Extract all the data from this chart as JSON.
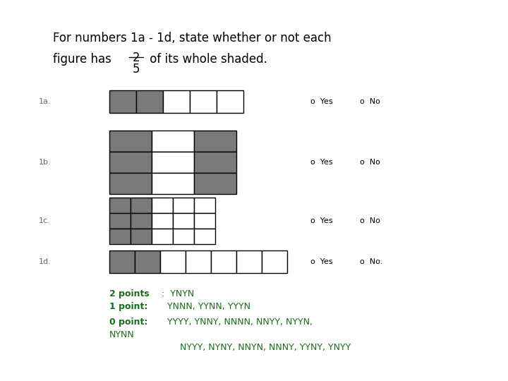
{
  "bg_color": "#ffffff",
  "gray_color": "#7a7a7a",
  "white_color": "#ffffff",
  "black_color": "#000000",
  "green_color": "#1a6b1a",
  "label_color": "#666666",
  "title_line1": "For numbers 1a - 1d, state whether or not each",
  "title_line2_pre": "figure has ",
  "fraction_num": "2",
  "fraction_den": "5",
  "title_line2_post": " of its whole shaded.",
  "rows": [
    {
      "label": "1a.",
      "grid_type": "1a",
      "yes_no": "No"
    },
    {
      "label": "1b.",
      "grid_type": "1b",
      "yes_no": "No"
    },
    {
      "label": "1c.",
      "grid_type": "1c",
      "yes_no": "No"
    },
    {
      "label": "1d.",
      "grid_type": "1d",
      "yes_no": "No."
    }
  ],
  "score_lines": [
    {
      "bold": "2 points",
      "normal": ":  YNYN"
    },
    {
      "bold": "1 point:",
      "normal": "  YNNN, YYNN, YYYN"
    },
    {
      "bold": "0 point:",
      "normal": "  YYYY, YNNY, NNNN, NNYY, NYYN,"
    },
    {
      "bold": "",
      "normal": "NYNN"
    },
    {
      "bold": "",
      "normal": "          NYYY, NYNY, NNYN, NNNY, YYNY, YNYY"
    }
  ]
}
